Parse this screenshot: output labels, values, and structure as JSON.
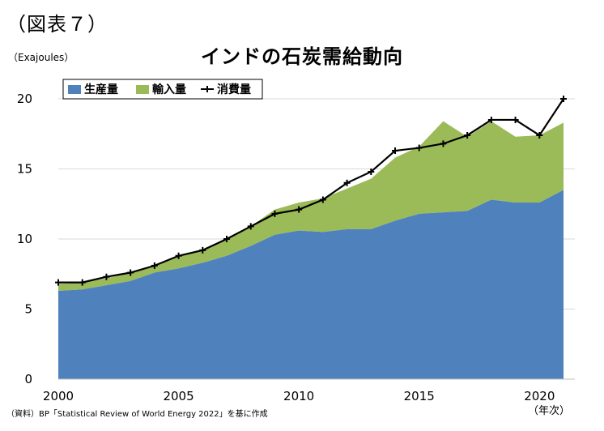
{
  "figure_label": "（図表７）",
  "unit_label": "（Exajoules）",
  "source_note": "（資料）BP「Statistical Review of World Energy  2022」を基に作成",
  "x_unit_label": "（年次）",
  "colors": {
    "production": "#4f81bd",
    "imports": "#9bbb59",
    "consumption": "#000000",
    "grid": "#d9d9d9"
  },
  "chart_data": {
    "type": "area",
    "title": "インドの石炭需給動向",
    "ylabel": "（Exajoules）",
    "xlabel": "（年次）",
    "x": [
      2000,
      2001,
      2002,
      2003,
      2004,
      2005,
      2006,
      2007,
      2008,
      2009,
      2010,
      2011,
      2012,
      2013,
      2014,
      2015,
      2016,
      2017,
      2018,
      2019,
      2020,
      2021
    ],
    "ylim": [
      0,
      20
    ],
    "yticks": [
      0,
      5,
      10,
      15,
      20
    ],
    "xticks": [
      2000,
      2005,
      2010,
      2015,
      2020
    ],
    "grid": true,
    "legend_position": "top-left",
    "series": [
      {
        "name": "生産量",
        "type": "area",
        "values": [
          6.3,
          6.4,
          6.7,
          7.0,
          7.6,
          7.9,
          8.3,
          8.8,
          9.5,
          10.3,
          10.6,
          10.5,
          10.7,
          10.7,
          11.3,
          11.8,
          11.9,
          12.0,
          12.8,
          12.6,
          12.6,
          13.5
        ]
      },
      {
        "name": "輸入量",
        "type": "area",
        "values": [
          0.5,
          0.5,
          0.5,
          0.6,
          0.5,
          0.9,
          0.9,
          1.2,
          1.4,
          1.8,
          2.0,
          2.4,
          2.9,
          3.6,
          4.5,
          4.8,
          6.5,
          5.3,
          5.6,
          4.7,
          4.8,
          4.8
        ]
      },
      {
        "name": "消費量",
        "type": "line",
        "values": [
          6.9,
          6.9,
          7.3,
          7.6,
          8.1,
          8.8,
          9.2,
          10.0,
          10.9,
          11.8,
          12.1,
          12.8,
          14.0,
          14.8,
          16.3,
          16.5,
          16.8,
          17.4,
          18.5,
          18.5,
          17.4,
          20.0
        ]
      }
    ]
  }
}
